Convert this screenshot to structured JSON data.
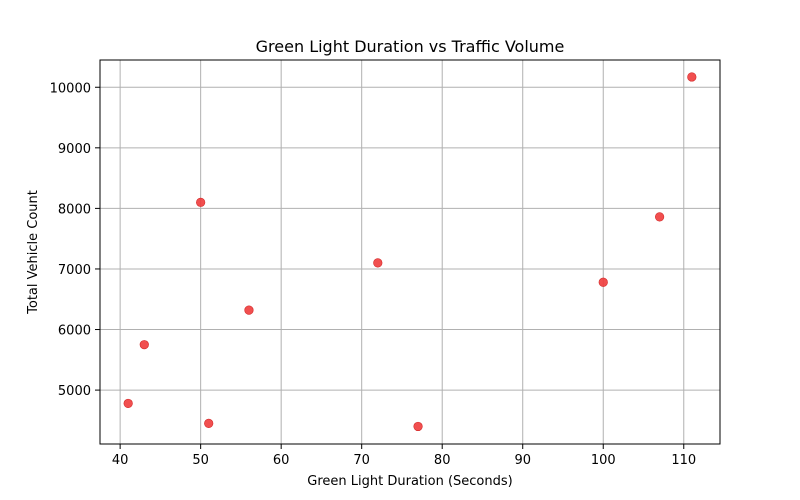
{
  "chart_data": {
    "type": "scatter",
    "title": "Green Light Duration vs Traffic Volume",
    "xlabel": "Green Light Duration (Seconds)",
    "ylabel": "Total Vehicle Count",
    "xlim": [
      37.5,
      114.5
    ],
    "ylim": [
      4110,
      10450
    ],
    "xticks": [
      40,
      50,
      60,
      70,
      80,
      90,
      100,
      110
    ],
    "yticks": [
      5000,
      6000,
      7000,
      8000,
      9000,
      10000
    ],
    "grid": true,
    "point_color": "#f03c3c",
    "points": [
      {
        "x": 41,
        "y": 4780
      },
      {
        "x": 43,
        "y": 5750
      },
      {
        "x": 50,
        "y": 8100
      },
      {
        "x": 51,
        "y": 4450
      },
      {
        "x": 56,
        "y": 6320
      },
      {
        "x": 72,
        "y": 7100
      },
      {
        "x": 77,
        "y": 4400
      },
      {
        "x": 100,
        "y": 6780
      },
      {
        "x": 107,
        "y": 7860
      },
      {
        "x": 111,
        "y": 10170
      }
    ]
  }
}
